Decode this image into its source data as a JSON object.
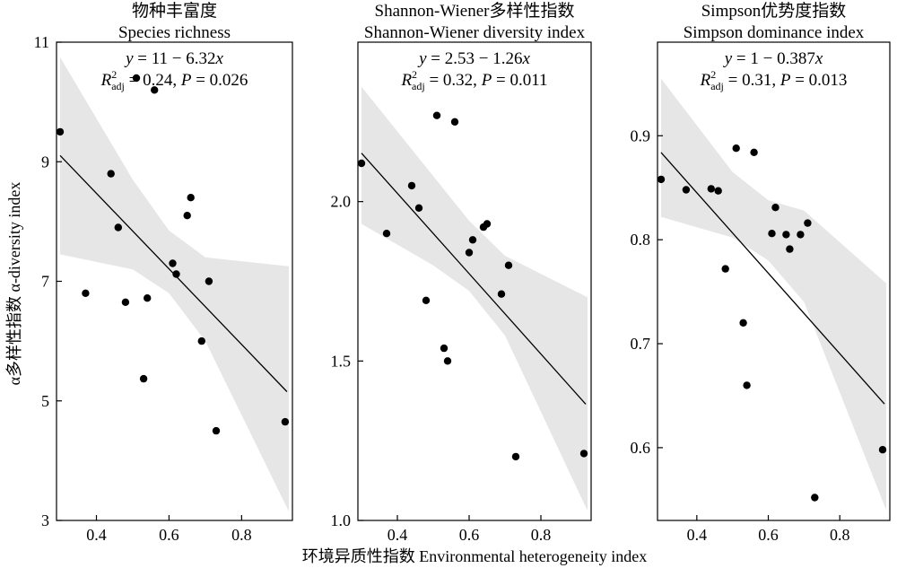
{
  "figure": {
    "ylabel": "α多样性指数 α-diversity index",
    "xlabel": "环境异质性指数 Environmental heterogeneity index",
    "colors": {
      "band": "#e6e6e6",
      "point": "#000000",
      "line": "#000000"
    }
  },
  "chart_data": [
    {
      "type": "scatter",
      "title_cn": "物种丰富度",
      "title_en": "Species richness",
      "eq": "y = 11 − 6.32x",
      "r2_text": "R²adj = 0.24, P = 0.026",
      "xlim": [
        0.29,
        0.94
      ],
      "ylim": [
        3,
        11
      ],
      "xticks": [
        0.4,
        0.6,
        0.8
      ],
      "xtick_labels": [
        "0.4",
        "0.6",
        "0.8"
      ],
      "yticks": [
        3,
        5,
        7,
        9,
        11
      ],
      "ytick_labels": [
        "3",
        "5",
        "7",
        "9",
        "11"
      ],
      "x": [
        0.3,
        0.37,
        0.44,
        0.46,
        0.48,
        0.51,
        0.53,
        0.54,
        0.56,
        0.61,
        0.62,
        0.65,
        0.66,
        0.69,
        0.71,
        0.73,
        0.92
      ],
      "y": [
        9.5,
        6.8,
        8.8,
        7.9,
        6.65,
        10.4,
        5.37,
        6.72,
        10.2,
        7.3,
        7.12,
        8.1,
        8.4,
        6.0,
        7.0,
        4.5,
        4.65
      ],
      "fit": {
        "intercept": 11,
        "slope": -6.32
      },
      "band": {
        "x": [
          0.3,
          0.5,
          0.6,
          0.7,
          0.93
        ],
        "lo": [
          7.45,
          7.2,
          6.8,
          6.0,
          3.15
        ],
        "hi": [
          10.75,
          8.7,
          7.85,
          7.4,
          7.25
        ]
      }
    },
    {
      "type": "scatter",
      "title_cn": "Shannon-Wiener多样性指数",
      "title_en": "Shannon-Wiener diversity index",
      "eq": "y = 2.53 − 1.26x",
      "r2_text": "R²adj = 0.32, P = 0.011",
      "xlim": [
        0.29,
        0.94
      ],
      "ylim": [
        1.0,
        2.5
      ],
      "xticks": [
        0.4,
        0.6,
        0.8
      ],
      "xtick_labels": [
        "0.4",
        "0.6",
        "0.8"
      ],
      "yticks": [
        1.0,
        1.5,
        2.0
      ],
      "ytick_labels": [
        "1.0",
        "1.5",
        "2.0"
      ],
      "x": [
        0.3,
        0.37,
        0.44,
        0.46,
        0.48,
        0.51,
        0.53,
        0.54,
        0.56,
        0.6,
        0.61,
        0.64,
        0.65,
        0.69,
        0.71,
        0.73,
        0.92
      ],
      "y": [
        2.12,
        1.9,
        2.05,
        1.98,
        1.69,
        2.27,
        1.54,
        1.5,
        2.25,
        1.84,
        1.88,
        1.92,
        1.93,
        1.71,
        1.8,
        1.2,
        1.21
      ],
      "fit": {
        "intercept": 2.53,
        "slope": -1.26
      },
      "band": {
        "x": [
          0.3,
          0.5,
          0.6,
          0.7,
          0.93
        ],
        "lo": [
          1.93,
          1.8,
          1.72,
          1.58,
          1.03
        ],
        "hi": [
          2.36,
          2.08,
          1.94,
          1.83,
          1.7
        ]
      }
    },
    {
      "type": "scatter",
      "title_cn": "Simpson优势度指数",
      "title_en": "Simpson dominance index",
      "eq": "y = 1 − 0.387x",
      "r2_text": "R²adj = 0.31, P = 0.013",
      "xlim": [
        0.29,
        0.94
      ],
      "ylim": [
        0.53,
        0.99
      ],
      "xticks": [
        0.4,
        0.6,
        0.8
      ],
      "xtick_labels": [
        "0.4",
        "0.6",
        "0.8"
      ],
      "yticks": [
        0.6,
        0.7,
        0.8,
        0.9
      ],
      "ytick_labels": [
        "0.6",
        "0.7",
        "0.8",
        "0.9"
      ],
      "x": [
        0.3,
        0.37,
        0.44,
        0.46,
        0.48,
        0.51,
        0.53,
        0.54,
        0.56,
        0.61,
        0.62,
        0.65,
        0.66,
        0.69,
        0.71,
        0.73,
        0.92
      ],
      "y": [
        0.858,
        0.848,
        0.849,
        0.847,
        0.772,
        0.888,
        0.72,
        0.66,
        0.884,
        0.806,
        0.831,
        0.805,
        0.791,
        0.805,
        0.816,
        0.552,
        0.598
      ],
      "fit": {
        "intercept": 1.0,
        "slope": -0.387
      },
      "band": {
        "x": [
          0.3,
          0.5,
          0.6,
          0.7,
          0.93
        ],
        "lo": [
          0.822,
          0.802,
          0.78,
          0.74,
          0.54
        ],
        "hi": [
          0.955,
          0.865,
          0.838,
          0.828,
          0.758
        ]
      }
    }
  ]
}
